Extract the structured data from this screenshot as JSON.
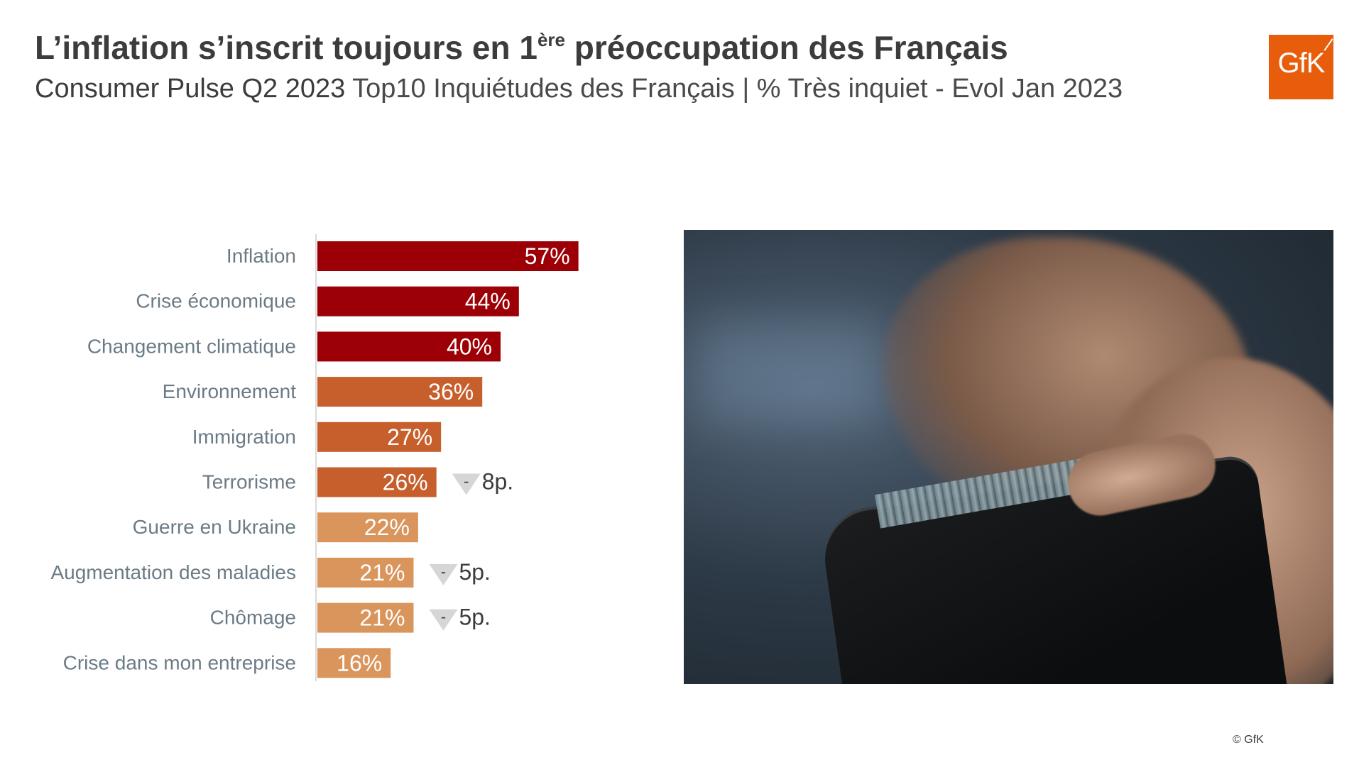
{
  "header": {
    "title_main": "L’inflation s’inscrit toujours en 1",
    "title_sup": "ère",
    "title_rest": " préoccupation des Français",
    "subtitle_strong": "Consumer Pulse Q2 2023",
    "subtitle_rest": " Top10 Inquiétudes des Français | % Très inquiet - Evol Jan 2023"
  },
  "logo": {
    "text": "GfK",
    "color": "#e85d0c"
  },
  "footer": {
    "copyright": "© GfK"
  },
  "colors": {
    "dark_red": "#9c0006",
    "orange": "#c65f2b",
    "light_orange": "#d9955c",
    "evol_marker": "#d6d6d6",
    "label_text": "#6b7b86"
  },
  "chart_data": {
    "type": "bar",
    "orientation": "horizontal",
    "categories": [
      "Inflation",
      "Crise économique",
      "Changement climatique",
      "Environnement",
      "Immigration",
      "Terrorisme",
      "Guerre en Ukraine",
      "Augmentation des maladies",
      "Chômage",
      "Crise dans mon entreprise"
    ],
    "values": [
      57,
      44,
      40,
      36,
      27,
      26,
      22,
      21,
      21,
      16
    ],
    "value_labels": [
      "57%",
      "44%",
      "40%",
      "36%",
      "27%",
      "26%",
      "22%",
      "21%",
      "21%",
      "16%"
    ],
    "bar_colors": [
      "#9c0006",
      "#9c0006",
      "#9c0006",
      "#c65f2b",
      "#c65f2b",
      "#c65f2b",
      "#d9955c",
      "#d9955c",
      "#d9955c",
      "#d9955c"
    ],
    "evolution": [
      {
        "category": "Terrorisme",
        "label": "8p.",
        "sign": "-"
      },
      {
        "category": "Augmentation des maladies",
        "label": "5p.",
        "sign": "-"
      },
      {
        "category": "Chômage",
        "label": "5p.",
        "sign": "-"
      }
    ],
    "xlim": [
      0,
      100
    ]
  }
}
